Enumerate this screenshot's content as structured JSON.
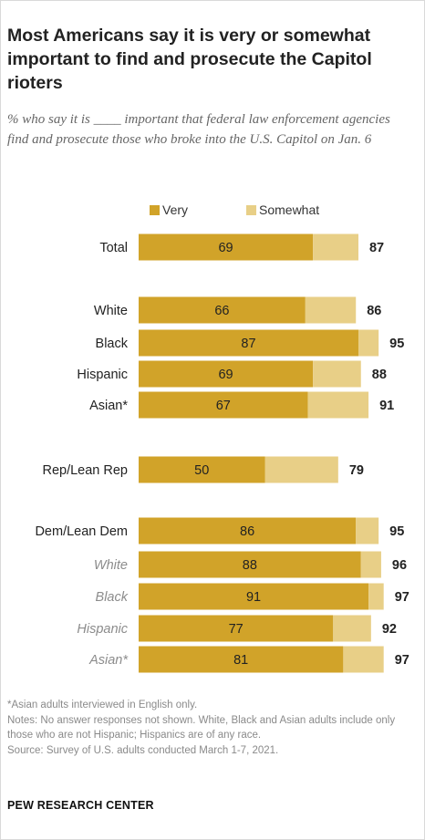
{
  "title": "Most Americans say it is very or somewhat important to find and prosecute the Capitol rioters",
  "subtitle": "% who say it is ____ important that federal law enforcement agencies find and prosecute those who broke into the U.S. Capitol on Jan. 6",
  "colors": {
    "very": "#d1a329",
    "somewhat": "#e8cf87",
    "label_italic": "#8c8c8c"
  },
  "chart_data": {
    "type": "bar",
    "orientation": "horizontal",
    "stacked": true,
    "legend": {
      "placement": "top",
      "entries": [
        "Very",
        "Somewhat"
      ]
    },
    "series": [
      {
        "name": "Very",
        "values": [
          69,
          66,
          87,
          69,
          67,
          50,
          86,
          88,
          91,
          77,
          81
        ]
      },
      {
        "name": "Somewhat",
        "values": [
          18,
          20,
          8,
          19,
          24,
          29,
          9,
          8,
          6,
          15,
          16
        ]
      }
    ],
    "categories": [
      "Total",
      "White",
      "Black",
      "Hispanic",
      "Asian*",
      "Rep/Lean Rep",
      "Dem/Lean Dem",
      "White",
      "Black",
      "Hispanic",
      "Asian*"
    ],
    "totals": [
      87,
      86,
      95,
      88,
      91,
      79,
      95,
      96,
      97,
      92,
      97
    ],
    "italic_categories": [
      false,
      false,
      false,
      false,
      false,
      false,
      false,
      true,
      true,
      true,
      true
    ],
    "xlim": [
      0,
      100
    ]
  },
  "footer": {
    "note1": "*Asian adults interviewed in English only.",
    "note2": "Notes: No answer responses not shown. White, Black and Asian adults include only those who are not Hispanic; Hispanics are of any race.",
    "source": "Source: Survey of U.S. adults conducted March 1-7, 2021."
  },
  "brand": "PEW RESEARCH CENTER"
}
